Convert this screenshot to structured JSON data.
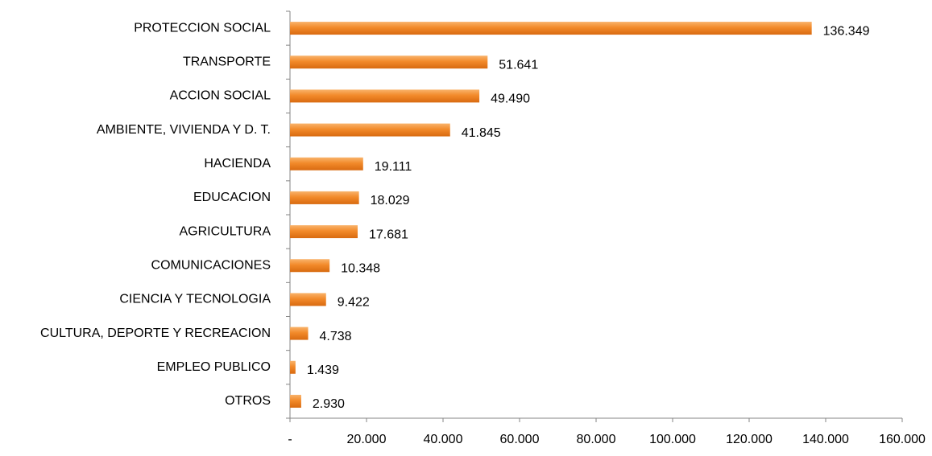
{
  "chart_data": {
    "type": "bar",
    "orientation": "horizontal",
    "categories": [
      "PROTECCION SOCIAL",
      "TRANSPORTE",
      "ACCION SOCIAL",
      "AMBIENTE,  VIVIENDA  Y D. T.",
      "HACIENDA",
      "EDUCACION",
      "AGRICULTURA",
      "COMUNICACIONES",
      "CIENCIA Y TECNOLOGIA",
      "CULTURA, DEPORTE Y RECREACION",
      "EMPLEO PUBLICO",
      "OTROS"
    ],
    "values": [
      136349,
      51641,
      49490,
      41845,
      19111,
      18029,
      17681,
      10348,
      9422,
      4738,
      1439,
      2930
    ],
    "value_labels": [
      "136.349",
      "51.641",
      "49.490",
      "41.845",
      "19.111",
      "18.029",
      "17.681",
      "10.348",
      "9.422",
      "4.738",
      "1.439",
      "2.930"
    ],
    "color": "#f28a2a",
    "xlim": [
      0,
      160000
    ],
    "xticks": [
      {
        "value": 0,
        "label": "-"
      },
      {
        "value": 20000,
        "label": "20.000"
      },
      {
        "value": 40000,
        "label": "40.000"
      },
      {
        "value": 60000,
        "label": "60.000"
      },
      {
        "value": 80000,
        "label": "80.000"
      },
      {
        "value": 100000,
        "label": "100.000"
      },
      {
        "value": 120000,
        "label": "120.000"
      },
      {
        "value": 140000,
        "label": "140.000"
      },
      {
        "value": 160000,
        "label": "160.000"
      }
    ],
    "grid": false
  }
}
